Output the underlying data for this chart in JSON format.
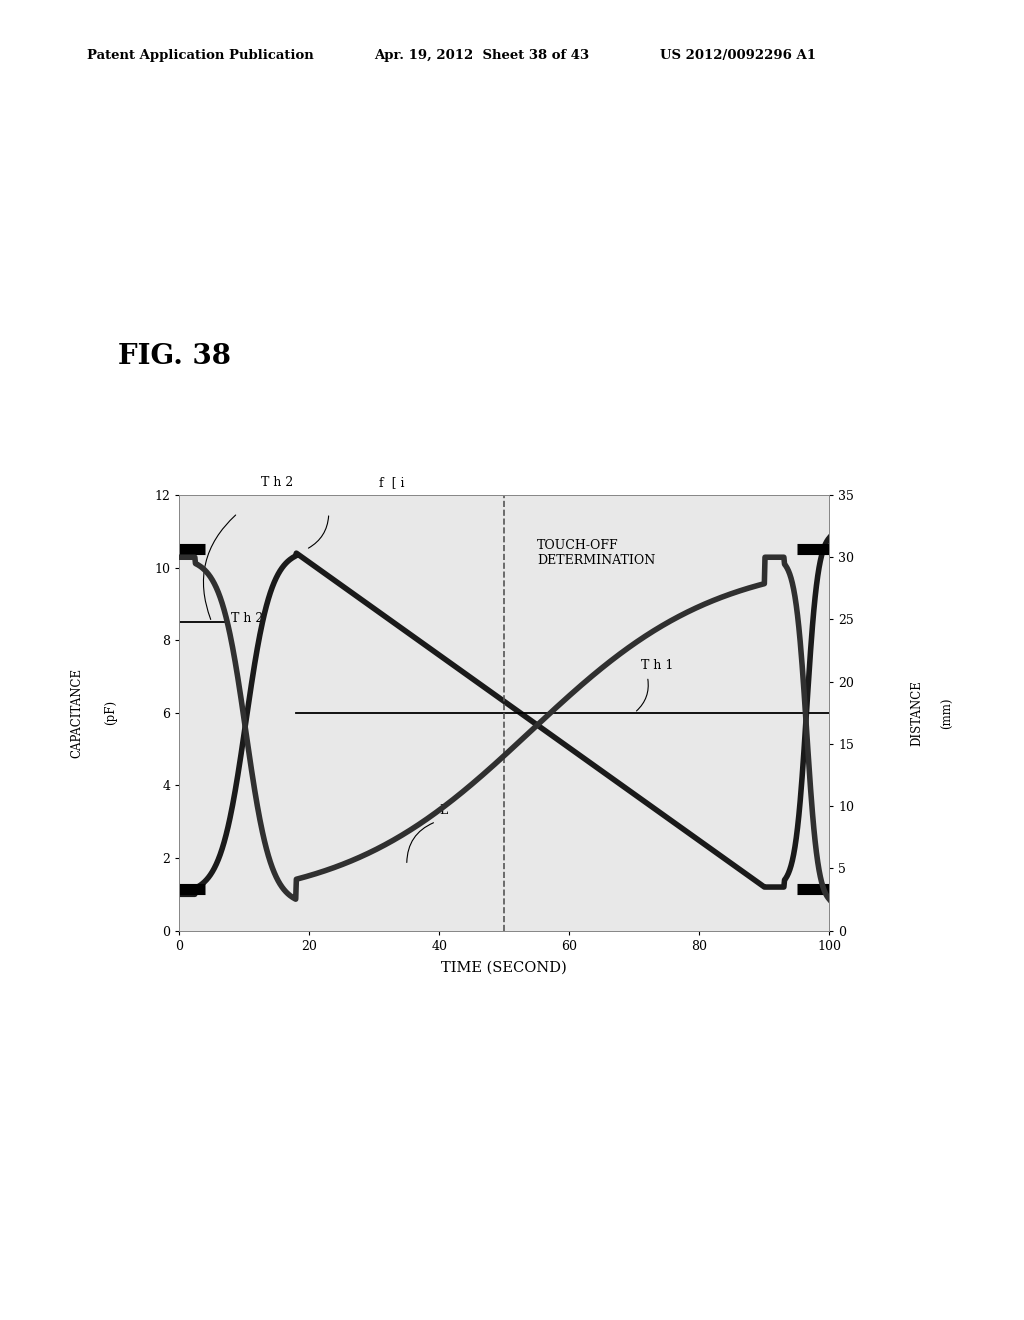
{
  "header_left": "Patent Application Publication",
  "header_mid": "Apr. 19, 2012  Sheet 38 of 43",
  "header_right": "US 2012/0092296 A1",
  "fig_label": "FIG. 38",
  "xlabel": "TIME (SECOND)",
  "ylabel_left": "CAPACITANCE    (pF)",
  "ylabel_right": "DISTANCE   (mm)",
  "xlim": [
    0,
    100
  ],
  "ylim_left": [
    0,
    12
  ],
  "ylim_right": [
    0,
    35
  ],
  "xticks": [
    0,
    20,
    40,
    60,
    80,
    100
  ],
  "yticks_left": [
    0,
    2,
    4,
    6,
    8,
    10,
    12
  ],
  "yticks_right": [
    0,
    5,
    10,
    15,
    20,
    25,
    30,
    35
  ],
  "th2_cap": 8.5,
  "th1_cap": 6.0,
  "dashed_line_x": 50,
  "touch_off_text": "TOUCH-OFF\nDETERMINATION",
  "background_color": "#ffffff",
  "chart_bg": "#e8e8e8"
}
